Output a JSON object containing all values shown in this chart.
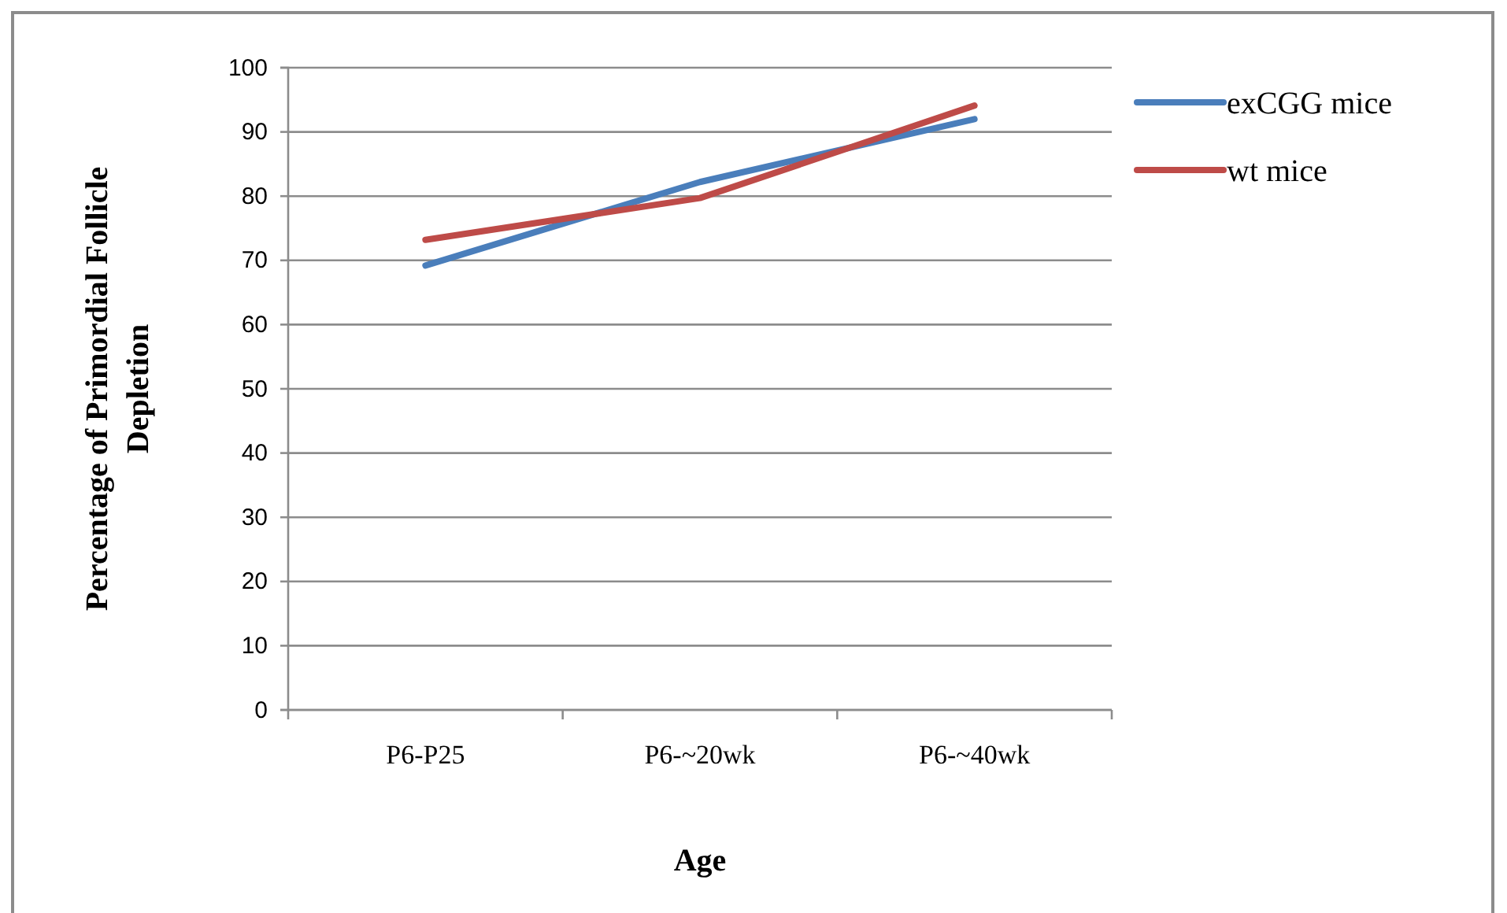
{
  "chart_data": {
    "type": "line",
    "xlabel": "Age",
    "ylabel": "Percentage of Primordial Follicle Depletion",
    "categories": [
      "P6-P25",
      "P6-~20wk",
      "P6-~40wk"
    ],
    "series": [
      {
        "name": "exCGG mice",
        "color": "#4a7ebb",
        "values": [
          69.2,
          82.2,
          92
        ]
      },
      {
        "name": "wt mice",
        "color": "#be4b48",
        "values": [
          73.2,
          79.7,
          94.1
        ]
      }
    ],
    "ylim": [
      0,
      100
    ],
    "yticks": [
      0,
      10,
      20,
      30,
      40,
      50,
      60,
      70,
      80,
      90,
      100
    ],
    "grid": "y",
    "legend": "right",
    "marker": "none",
    "line_style": "solid"
  }
}
